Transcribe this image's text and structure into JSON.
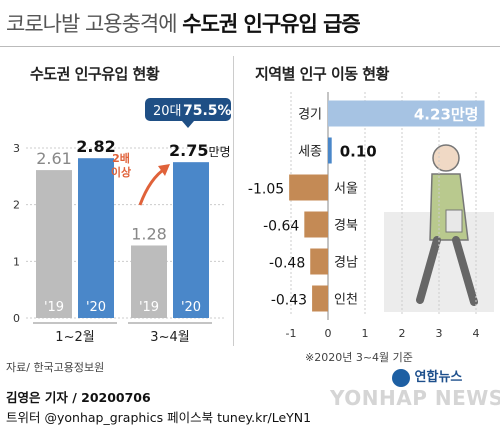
{
  "title_part1": "코로나발 고용충격에",
  "title_part2": "수도권 인구유입 급증",
  "left_subtitle": "수도권 인구유입 현황",
  "right_subtitle": "지역별 인구 이동 현황",
  "source": "자료/ 한국고용정보원",
  "footnote": "※2020년 3~4월 기준",
  "byline": "김영은 기자 / 20200706",
  "social": "트위터 @yonhap_graphics  페이스북 tuney.kr/LeYN1",
  "logo_ko": "연합뉴스",
  "watermark": "YONHAP NEWS",
  "colors": {
    "gray_bar": "#bcbcbc",
    "blue_bar": "#4a87c9",
    "orange_bar": "#c48a55",
    "light_blue_bar": "#a6c3e3",
    "callout_bg": "#1f4f85",
    "arrow": "#e0623a"
  },
  "chart_data": [
    {
      "type": "bar",
      "title": "수도권 인구유입 현황",
      "categories": [
        "1~2월",
        "3~4월"
      ],
      "series": [
        {
          "name": "'19",
          "values": [
            2.61,
            1.28
          ]
        },
        {
          "name": "'20",
          "values": [
            2.82,
            2.75
          ]
        }
      ],
      "value_labels": [
        "2.61",
        "2.82",
        "1.28",
        "2.75"
      ],
      "unit_label": "만명",
      "ylim": [
        0,
        3
      ],
      "yticks": [
        "0",
        "1",
        "2",
        "3"
      ],
      "annotation_arrow": [
        "2배",
        "이상"
      ],
      "callout": {
        "label": "20대",
        "value": "75.5%"
      },
      "grid": true
    },
    {
      "type": "bar",
      "orientation": "horizontal",
      "title": "지역별 인구 이동 현황",
      "categories": [
        "경기",
        "세종",
        "서울",
        "경북",
        "경남",
        "인천"
      ],
      "values": [
        4.23,
        0.1,
        -1.05,
        -0.64,
        -0.48,
        -0.43
      ],
      "value_labels": [
        "4.23만명",
        "0.10",
        "-1.05",
        "-0.64",
        "-0.48",
        "-0.43"
      ],
      "xlim": [
        -1,
        4
      ],
      "xticks": [
        "-1",
        "0",
        "1",
        "2",
        "3",
        "4"
      ],
      "grid": true
    }
  ]
}
